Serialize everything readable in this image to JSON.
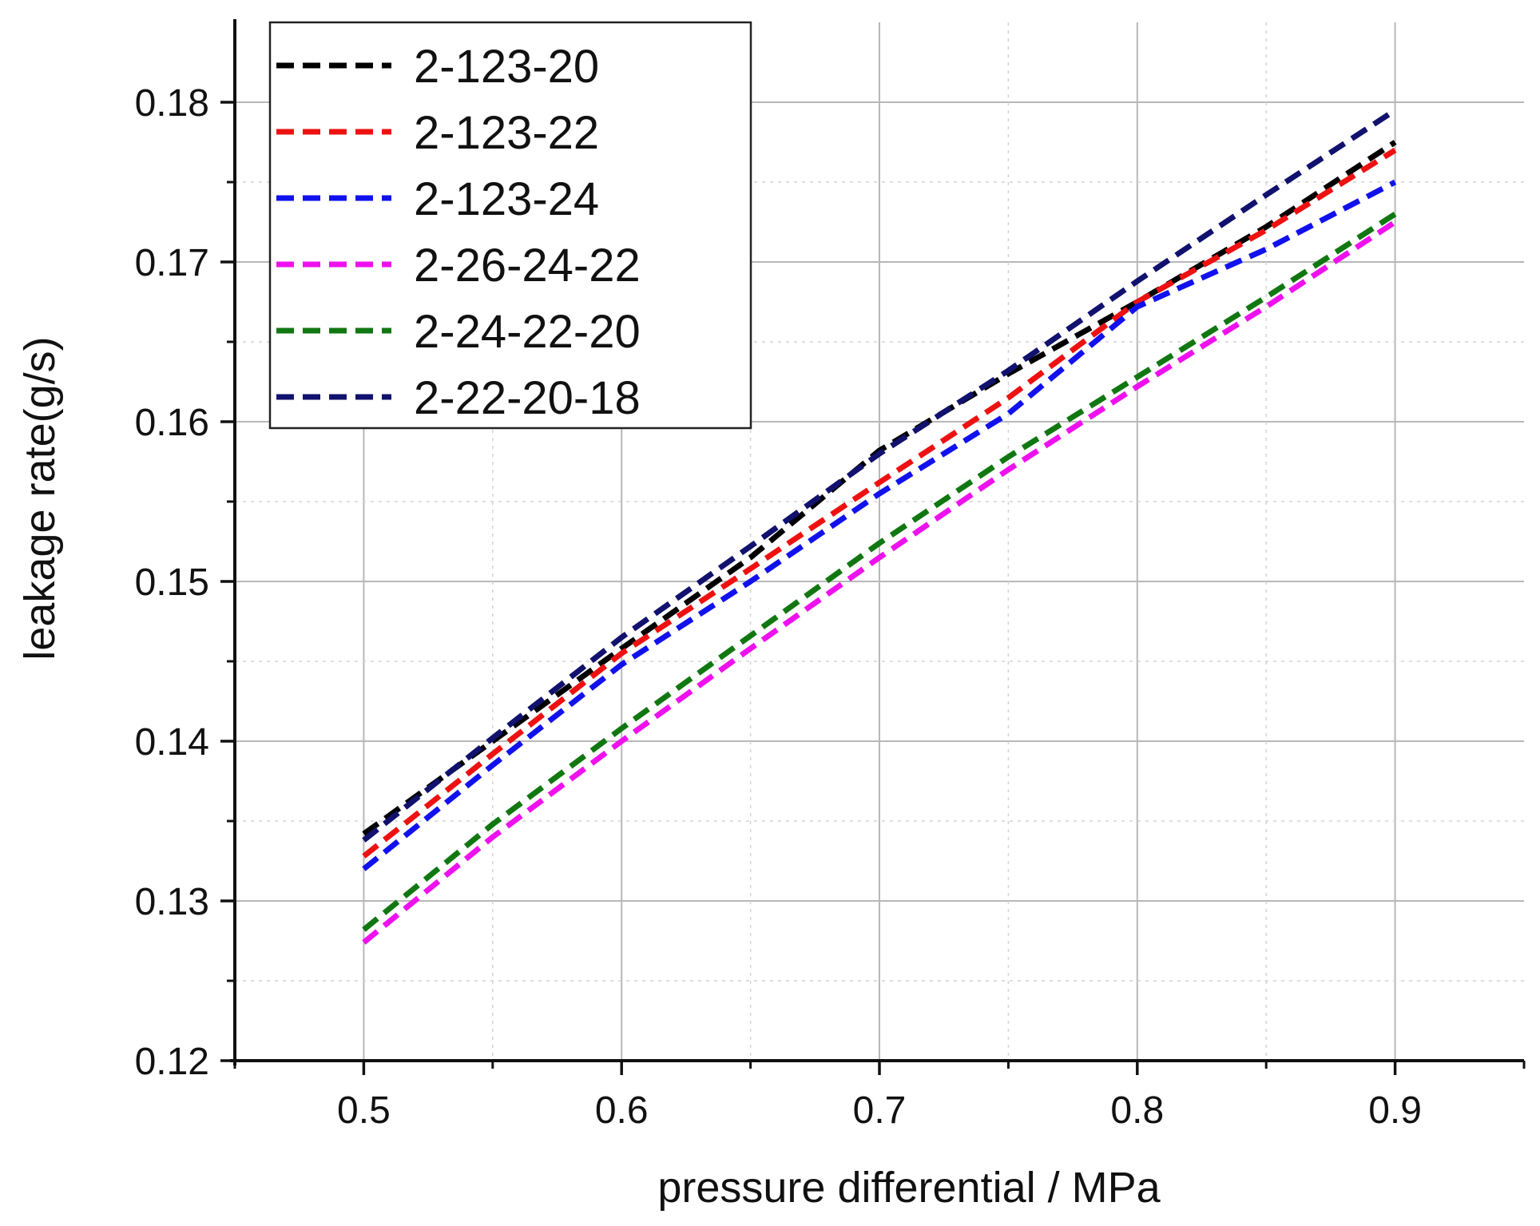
{
  "chart_data": {
    "type": "line",
    "title": "",
    "xlabel": "pressure differential / MPa",
    "ylabel": "leakage rate(g/s)",
    "xlim": [
      0.45,
      0.95
    ],
    "ylim": [
      0.12,
      0.185
    ],
    "xticks": [
      0.5,
      0.6,
      0.7,
      0.8,
      0.9
    ],
    "xtick_labels": [
      "0.5",
      "0.6",
      "0.7",
      "0.8",
      "0.9"
    ],
    "xminor": [
      0.45,
      0.55,
      0.65,
      0.75,
      0.85,
      0.95
    ],
    "yticks": [
      0.12,
      0.13,
      0.14,
      0.15,
      0.16,
      0.17,
      0.18
    ],
    "ytick_labels": [
      "0.12",
      "0.13",
      "0.14",
      "0.15",
      "0.16",
      "0.17",
      "0.18"
    ],
    "yminor": [
      0.125,
      0.135,
      0.145,
      0.155,
      0.165,
      0.175
    ],
    "grid": true,
    "line_style": "dashed",
    "legend_position": "top-left",
    "series": [
      {
        "name": "2-123-20",
        "color": "#000000",
        "x": [
          0.5,
          0.55,
          0.6,
          0.65,
          0.7,
          0.75,
          0.8,
          0.85,
          0.9
        ],
        "y": [
          0.1342,
          0.14,
          0.1458,
          0.1515,
          0.1582,
          0.163,
          0.1675,
          0.1722,
          0.1775
        ]
      },
      {
        "name": "2-123-22",
        "color": "#ee1111",
        "x": [
          0.5,
          0.55,
          0.6,
          0.65,
          0.7,
          0.75,
          0.8,
          0.85,
          0.9
        ],
        "y": [
          0.1328,
          0.1392,
          0.1455,
          0.1508,
          0.1562,
          0.1615,
          0.1675,
          0.172,
          0.177
        ]
      },
      {
        "name": "2-123-24",
        "color": "#1111ee",
        "x": [
          0.5,
          0.55,
          0.6,
          0.65,
          0.7,
          0.75,
          0.8,
          0.85,
          0.9
        ],
        "y": [
          0.132,
          0.1385,
          0.1448,
          0.15,
          0.1555,
          0.1605,
          0.1672,
          0.1708,
          0.175
        ]
      },
      {
        "name": "2-26-24-22",
        "color": "#ee11ee",
        "x": [
          0.5,
          0.55,
          0.6,
          0.65,
          0.7,
          0.75,
          0.8,
          0.85,
          0.9
        ],
        "y": [
          0.1274,
          0.134,
          0.14,
          0.1458,
          0.1515,
          0.157,
          0.1622,
          0.1672,
          0.1725
        ]
      },
      {
        "name": "2-24-22-20",
        "color": "#117711",
        "x": [
          0.5,
          0.55,
          0.6,
          0.65,
          0.7,
          0.75,
          0.8,
          0.85,
          0.9
        ],
        "y": [
          0.1282,
          0.1348,
          0.1408,
          0.1466,
          0.1524,
          0.1578,
          0.1628,
          0.1678,
          0.173
        ]
      },
      {
        "name": "2-22-20-18",
        "color": "#11116e",
        "x": [
          0.5,
          0.55,
          0.6,
          0.65,
          0.7,
          0.75,
          0.8,
          0.85,
          0.9
        ],
        "y": [
          0.1338,
          0.1402,
          0.1465,
          0.1522,
          0.158,
          0.1632,
          0.1688,
          0.1742,
          0.1795
        ]
      }
    ]
  }
}
